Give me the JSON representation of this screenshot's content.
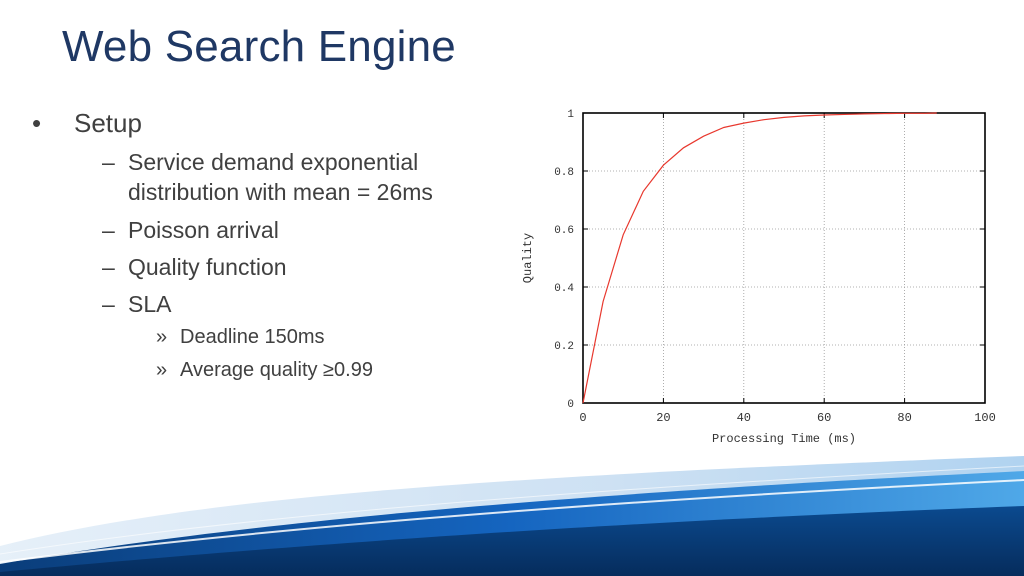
{
  "slide": {
    "title": "Web Search Engine",
    "bullet_marker": "•",
    "dash_marker": "–",
    "sub_marker": "»",
    "setup": "Setup",
    "items": [
      {
        "line1": "Service demand exponential",
        "line2": "distribution with mean = 26ms"
      },
      {
        "line1": "Poisson arrival"
      },
      {
        "line1": "Quality function"
      },
      {
        "line1": "SLA"
      }
    ],
    "sla_items": [
      "Deadline 150ms",
      "Average quality ≥0.99"
    ]
  },
  "colors": {
    "title": "#1f3864",
    "text": "#404040",
    "curve": "#e8382e"
  },
  "chart_data": {
    "type": "line",
    "title": "",
    "xlabel": "Processing Time (ms)",
    "ylabel": "Quality",
    "xlim": [
      0,
      100
    ],
    "ylim": [
      0,
      1
    ],
    "x_ticks": [
      "0",
      "20",
      "40",
      "60",
      "80",
      "100"
    ],
    "y_ticks": [
      "0",
      "0.2",
      "0.4",
      "0.6",
      "0.8",
      "1"
    ],
    "grid": true,
    "series": [
      {
        "x": [
          0,
          5,
          10,
          15,
          20,
          25,
          30,
          35,
          40,
          45,
          50,
          55,
          60,
          65,
          70,
          75,
          80,
          85,
          88
        ],
        "y": [
          0,
          0.35,
          0.58,
          0.73,
          0.82,
          0.88,
          0.92,
          0.95,
          0.965,
          0.977,
          0.985,
          0.99,
          0.993,
          0.995,
          0.997,
          0.998,
          0.999,
          0.999,
          1.0
        ]
      }
    ]
  }
}
